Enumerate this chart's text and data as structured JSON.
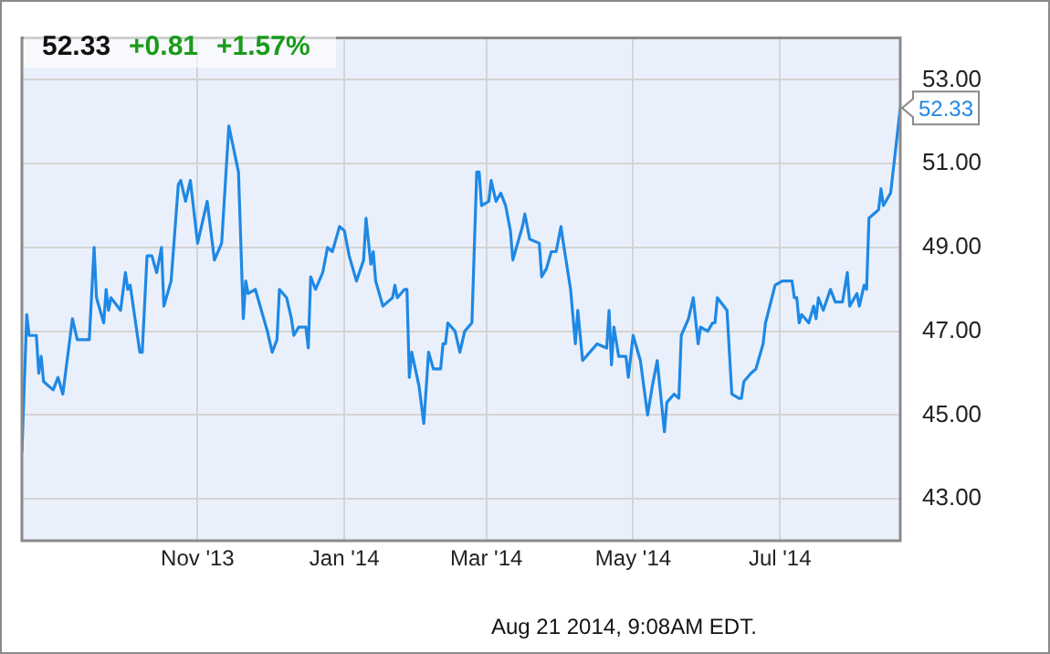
{
  "chart_data": {
    "type": "line",
    "title": "52.33",
    "annotations": [
      "+0.81",
      "+1.57%",
      "Aug 21 2014, 9:08AM EDT.",
      {
        "text": "52.33",
        "x": "2014-08-20",
        "y": 52.33
      }
    ],
    "x": [
      "2013-08-20",
      "2013-08-22",
      "2013-08-23",
      "2013-08-26",
      "2013-08-27",
      "2013-08-28",
      "2013-08-29",
      "2013-09-02",
      "2013-09-04",
      "2013-09-06",
      "2013-09-10",
      "2013-09-12",
      "2013-09-17",
      "2013-09-19",
      "2013-09-20",
      "2013-09-23",
      "2013-09-24",
      "2013-09-25",
      "2013-09-26",
      "2013-09-30",
      "2013-10-02",
      "2013-10-03",
      "2013-10-04",
      "2013-10-08",
      "2013-10-09",
      "2013-10-11",
      "2013-10-13",
      "2013-10-15",
      "2013-10-17",
      "2013-10-18",
      "2013-10-21",
      "2013-10-24",
      "2013-10-25",
      "2013-10-27",
      "2013-10-29",
      "2013-11-01",
      "2013-11-05",
      "2013-11-08",
      "2013-11-11",
      "2013-11-14",
      "2013-11-18",
      "2013-11-20",
      "2013-11-21",
      "2013-11-22",
      "2013-11-25",
      "2013-11-26",
      "2013-11-30",
      "2013-12-02",
      "2013-12-04",
      "2013-12-05",
      "2013-12-08",
      "2013-12-10",
      "2013-12-11",
      "2013-12-13",
      "2013-12-16",
      "2013-12-17",
      "2013-12-18",
      "2013-12-20",
      "2013-12-23",
      "2013-12-25",
      "2013-12-27",
      "2013-12-30",
      "2014-01-01",
      "2014-01-03",
      "2014-01-06",
      "2014-01-09",
      "2014-01-10",
      "2014-01-12",
      "2014-01-13",
      "2014-01-14",
      "2014-01-17",
      "2014-01-21",
      "2014-01-22",
      "2014-01-23",
      "2014-01-26",
      "2014-01-27",
      "2014-01-28",
      "2014-01-29",
      "2014-02-01",
      "2014-02-03",
      "2014-02-05",
      "2014-02-07",
      "2014-02-10",
      "2014-02-11",
      "2014-02-12",
      "2014-02-13",
      "2014-02-16",
      "2014-02-18",
      "2014-02-20",
      "2014-02-23",
      "2014-02-25",
      "2014-02-26",
      "2014-02-27",
      "2014-03-02",
      "2014-03-03",
      "2014-03-05",
      "2014-03-07",
      "2014-03-09",
      "2014-03-11",
      "2014-03-12",
      "2014-03-14",
      "2014-03-16",
      "2014-03-17",
      "2014-03-19",
      "2014-03-23",
      "2014-03-24",
      "2014-03-26",
      "2014-03-28",
      "2014-03-30",
      "2014-04-01",
      "2014-04-02",
      "2014-04-05",
      "2014-04-07",
      "2014-04-08",
      "2014-04-10",
      "2014-04-13",
      "2014-04-16",
      "2014-04-20",
      "2014-04-21",
      "2014-04-22",
      "2014-04-23",
      "2014-04-25",
      "2014-04-28",
      "2014-04-29",
      "2014-05-01",
      "2014-05-04",
      "2014-05-07",
      "2014-05-09",
      "2014-05-11",
      "2014-05-14",
      "2014-05-15",
      "2014-05-18",
      "2014-05-20",
      "2014-05-21",
      "2014-05-24",
      "2014-05-26",
      "2014-05-28",
      "2014-05-29",
      "2014-06-01",
      "2014-06-03",
      "2014-06-04",
      "2014-06-05",
      "2014-06-09",
      "2014-06-11",
      "2014-06-14",
      "2014-06-15",
      "2014-06-16",
      "2014-06-19",
      "2014-06-21",
      "2014-06-24",
      "2014-06-25",
      "2014-06-29",
      "2014-07-02",
      "2014-07-06",
      "2014-07-07",
      "2014-07-08",
      "2014-07-09",
      "2014-07-10",
      "2014-07-13",
      "2014-07-15",
      "2014-07-16",
      "2014-07-17",
      "2014-07-19",
      "2014-07-22",
      "2014-07-24",
      "2014-07-27",
      "2014-07-29",
      "2014-07-30",
      "2014-08-02",
      "2014-08-03",
      "2014-08-05",
      "2014-08-06",
      "2014-08-07",
      "2014-08-09",
      "2014-08-11",
      "2014-08-12",
      "2014-08-13",
      "2014-08-16",
      "2014-08-17",
      "2014-08-20"
    ],
    "series": [
      {
        "color": "#1e88e5",
        "values": [
          44.1,
          47.4,
          46.9,
          46.9,
          46.0,
          46.4,
          45.8,
          45.6,
          45.9,
          45.5,
          47.3,
          46.8,
          46.8,
          49.0,
          47.8,
          47.2,
          48.0,
          47.5,
          47.8,
          47.5,
          48.4,
          48.0,
          48.1,
          46.5,
          46.5,
          48.8,
          48.8,
          48.4,
          49.0,
          47.6,
          48.2,
          50.5,
          50.6,
          50.1,
          50.6,
          49.1,
          50.1,
          48.7,
          49.1,
          51.9,
          50.8,
          47.3,
          48.2,
          47.9,
          48.0,
          47.8,
          47.0,
          46.5,
          46.8,
          48.0,
          47.8,
          47.3,
          46.9,
          47.1,
          47.1,
          46.6,
          48.3,
          48.0,
          48.4,
          49.0,
          48.9,
          49.5,
          49.4,
          48.8,
          48.2,
          48.7,
          49.7,
          48.6,
          48.9,
          48.2,
          47.6,
          47.8,
          48.1,
          47.8,
          48.0,
          48.0,
          45.9,
          46.5,
          45.7,
          44.8,
          46.5,
          46.1,
          46.1,
          46.7,
          46.7,
          47.2,
          47.0,
          46.5,
          47.0,
          47.2,
          50.8,
          50.8,
          50.0,
          50.1,
          50.6,
          50.1,
          50.3,
          50.0,
          49.4,
          48.7,
          49.1,
          49.5,
          49.8,
          49.2,
          49.1,
          48.3,
          48.5,
          48.9,
          48.9,
          49.5,
          49.1,
          48.0,
          46.7,
          47.5,
          46.3,
          46.5,
          46.7,
          46.6,
          47.5,
          46.2,
          47.1,
          46.4,
          46.4,
          45.9,
          46.9,
          46.3,
          45.0,
          45.7,
          46.3,
          44.6,
          45.3,
          45.5,
          45.4,
          46.9,
          47.3,
          47.8,
          46.7,
          47.1,
          47.0,
          47.2,
          47.2,
          47.8,
          47.5,
          45.5,
          45.4,
          45.4,
          45.8,
          46.0,
          46.1,
          46.7,
          47.2,
          48.1,
          48.2,
          48.2,
          47.8,
          47.8,
          47.2,
          47.4,
          47.2,
          47.6,
          47.3,
          47.8,
          47.5,
          48.0,
          47.7,
          47.7,
          48.4,
          47.6,
          47.9,
          47.6,
          48.1,
          48.0,
          49.7,
          49.8,
          49.9,
          50.4,
          50.0,
          50.3,
          50.8,
          52.33
        ]
      }
    ],
    "xlim": [
      "2013-08-20",
      "2014-08-20"
    ],
    "xticks": [
      {
        "value": "2013-11-01",
        "label": "Nov '13"
      },
      {
        "value": "2014-01-01",
        "label": "Jan '14"
      },
      {
        "value": "2014-03-01",
        "label": "Mar '14"
      },
      {
        "value": "2014-05-01",
        "label": "May '14"
      },
      {
        "value": "2014-07-01",
        "label": "Jul '14"
      }
    ],
    "ylim": [
      42,
      54
    ],
    "yticks": [
      {
        "value": 43,
        "label": "43.00"
      },
      {
        "value": 45,
        "label": "45.00"
      },
      {
        "value": 47,
        "label": "47.00"
      },
      {
        "value": 49,
        "label": "49.00"
      },
      {
        "value": 51,
        "label": "51.00"
      },
      {
        "value": 53,
        "label": "53.00"
      }
    ],
    "grid": true,
    "marker": "none",
    "line_style": "solid",
    "legend": false
  }
}
